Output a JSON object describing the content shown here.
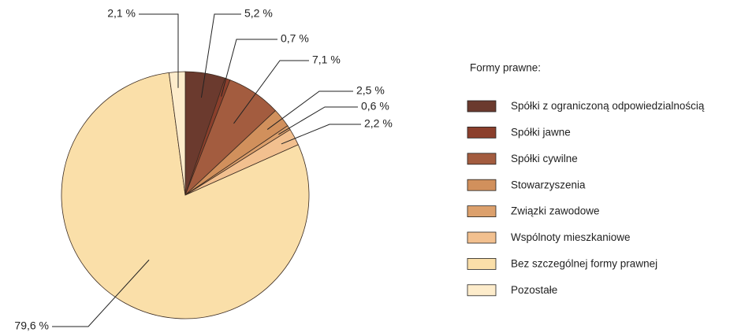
{
  "chart_data": {
    "type": "pie",
    "categories": [
      "Spółki z ograniczoną odpowiedzialnością",
      "Spółki jawne",
      "Spółki cywilne",
      "Stowarzyszenia",
      "Związki zawodowe",
      "Wspólnoty mieszkaniowe",
      "Bez szczególnej formy prawnej",
      "Pozostałe"
    ],
    "values": [
      5.2,
      0.7,
      7.1,
      2.5,
      0.6,
      2.2,
      79.6,
      2.1
    ],
    "value_labels": [
      "5,2 %",
      "0,7 %",
      "7,1 %",
      "2,5 %",
      "0,6 %",
      "2,2 %",
      "79,6 %",
      "2,1 %"
    ],
    "colors": [
      "#6b3a2e",
      "#8b3f2c",
      "#a35c3f",
      "#d1905c",
      "#dca06c",
      "#f2c08f",
      "#fadfa9",
      "#fdeccb"
    ],
    "legend_title": "Formy prawne:",
    "legend": "right"
  }
}
